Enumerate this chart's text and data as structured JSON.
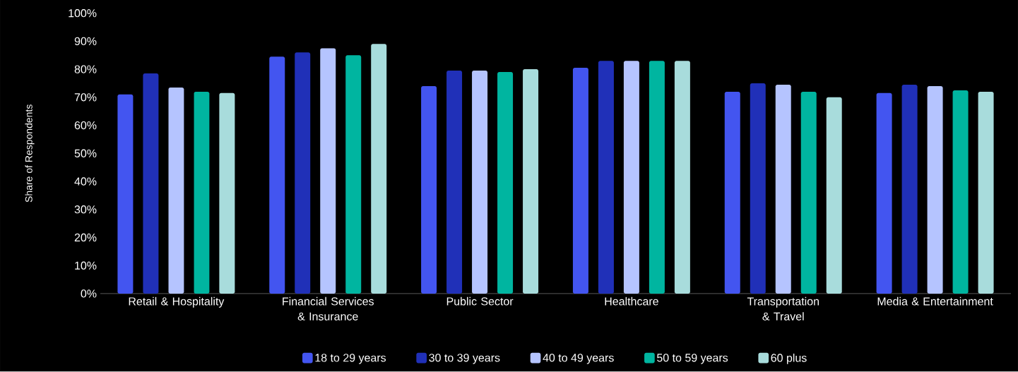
{
  "chart_data": {
    "type": "bar",
    "ylabel": "Share of Respondents",
    "categories": [
      "Retail & Hospitality",
      "Financial Services & Insurance",
      "Public Sector",
      "Healthcare",
      "Transportation & Travel",
      "Media & Entertainment"
    ],
    "series": [
      {
        "name": "18 to 29 years",
        "color": "#4355f0",
        "values": [
          71,
          84.5,
          74,
          80.5,
          72,
          71.5
        ]
      },
      {
        "name": "30 to 39 years",
        "color": "#2030b8",
        "values": [
          78.5,
          86,
          79.5,
          83,
          75,
          74.5
        ]
      },
      {
        "name": "40 to 49 years",
        "color": "#b5c4ff",
        "values": [
          73.5,
          87.5,
          79.5,
          83,
          74.5,
          74
        ]
      },
      {
        "name": "50 to 59 years",
        "color": "#00b5a0",
        "values": [
          72,
          85,
          79,
          83,
          72,
          72.5
        ]
      },
      {
        "name": "60 plus",
        "color": "#a8dcdc",
        "values": [
          71.5,
          89,
          80,
          83,
          70,
          72
        ]
      }
    ],
    "ylim": [
      0,
      100
    ],
    "yticks": [
      {
        "value": 0,
        "label": "0%"
      },
      {
        "value": 10,
        "label": "10%"
      },
      {
        "value": 20,
        "label": "20%"
      },
      {
        "value": 30,
        "label": "30%"
      },
      {
        "value": 40,
        "label": "40%"
      },
      {
        "value": 50,
        "label": "50%"
      },
      {
        "value": 60,
        "label": "60%"
      },
      {
        "value": 70,
        "label": "70%"
      },
      {
        "value": 80,
        "label": "80%"
      },
      {
        "value": 90,
        "label": "90%"
      },
      {
        "value": 100,
        "label": "100%"
      }
    ],
    "grid": false,
    "legend": "bottom"
  }
}
